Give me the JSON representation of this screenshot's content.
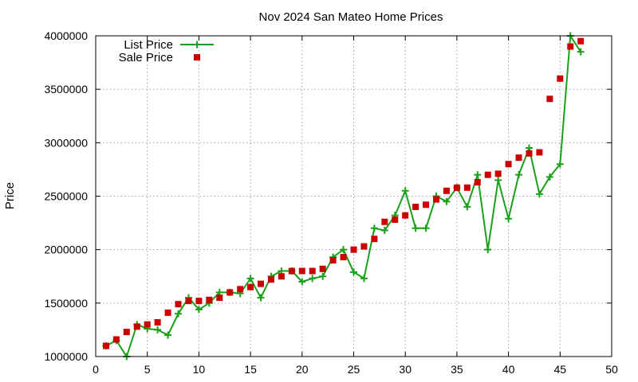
{
  "chart_data": {
    "type": "scatter",
    "title": "Nov 2024 San Mateo Home Prices",
    "xlabel": "",
    "ylabel": "Price",
    "xlim": [
      0,
      50
    ],
    "ylim": [
      1000000,
      4000000
    ],
    "x_ticks": [
      0,
      5,
      10,
      15,
      20,
      25,
      30,
      35,
      40,
      45,
      50
    ],
    "y_ticks": [
      1000000,
      1500000,
      2000000,
      2500000,
      3000000,
      3500000,
      4000000
    ],
    "x_tick_labels": [
      "0",
      "5",
      "10",
      "15",
      "20",
      "25",
      "30",
      "35",
      "40",
      "45",
      "50"
    ],
    "y_tick_labels": [
      "1000000",
      "1500000",
      "2000000",
      "2500000",
      "3000000",
      "3500000",
      "4000000"
    ],
    "grid": true,
    "legend_position": "top-left",
    "series": [
      {
        "name": "List Price",
        "style": "line-with-plus-markers",
        "color": "#1aa01a",
        "x": [
          1,
          2,
          3,
          4,
          5,
          6,
          7,
          8,
          9,
          10,
          11,
          12,
          13,
          14,
          15,
          16,
          17,
          18,
          19,
          20,
          21,
          22,
          23,
          24,
          25,
          26,
          27,
          28,
          29,
          30,
          31,
          32,
          33,
          34,
          35,
          36,
          37,
          38,
          39,
          40,
          41,
          42,
          43,
          44,
          45,
          46,
          47
        ],
        "y": [
          1100000,
          1150000,
          1000000,
          1300000,
          1260000,
          1250000,
          1200000,
          1400000,
          1550000,
          1440000,
          1500000,
          1600000,
          1600000,
          1590000,
          1730000,
          1550000,
          1750000,
          1800000,
          1800000,
          1700000,
          1730000,
          1750000,
          1930000,
          2000000,
          1790000,
          1730000,
          2200000,
          2180000,
          2320000,
          2550000,
          2200000,
          2200000,
          2500000,
          2450000,
          2580000,
          2400000,
          2700000,
          2000000,
          2650000,
          2290000,
          2700000,
          2950000,
          2520000,
          2680000,
          2800000,
          4000000,
          3850000
        ]
      },
      {
        "name": "Sale Price",
        "style": "square-markers",
        "color": "#cc0000",
        "x": [
          1,
          2,
          3,
          4,
          5,
          6,
          7,
          8,
          9,
          10,
          11,
          12,
          13,
          14,
          15,
          16,
          17,
          18,
          19,
          20,
          21,
          22,
          23,
          24,
          25,
          26,
          27,
          28,
          29,
          30,
          31,
          32,
          33,
          34,
          35,
          36,
          37,
          38,
          39,
          40,
          41,
          42,
          43,
          44,
          45,
          46,
          47
        ],
        "y": [
          1100000,
          1160000,
          1230000,
          1280000,
          1300000,
          1320000,
          1410000,
          1490000,
          1520000,
          1520000,
          1530000,
          1550000,
          1600000,
          1630000,
          1650000,
          1680000,
          1720000,
          1750000,
          1800000,
          1800000,
          1800000,
          1820000,
          1900000,
          1930000,
          2000000,
          2030000,
          2100000,
          2260000,
          2280000,
          2320000,
          2400000,
          2420000,
          2470000,
          2550000,
          2580000,
          2580000,
          2630000,
          2700000,
          2710000,
          2800000,
          2860000,
          2900000,
          2910000,
          3410000,
          3600000,
          3900000,
          3950000
        ]
      }
    ]
  }
}
